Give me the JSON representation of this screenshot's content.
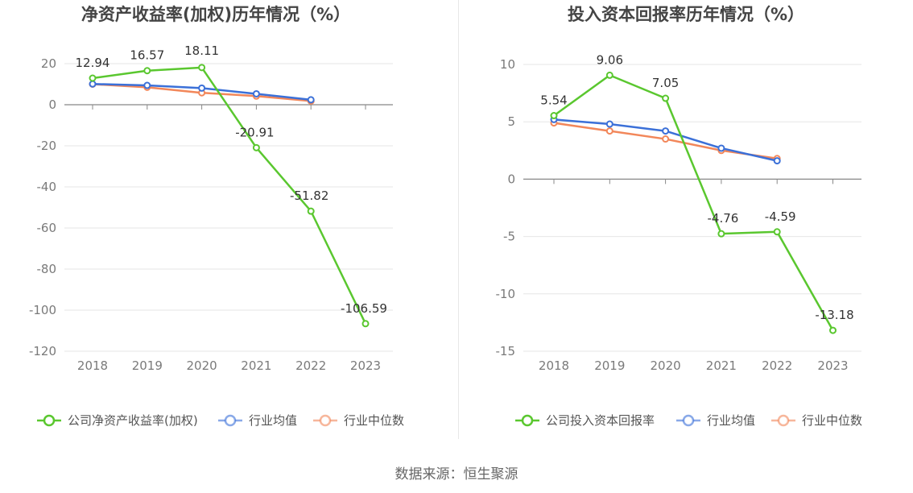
{
  "colors": {
    "company": "#5ac72f",
    "industry_avg": "#3b70d8",
    "industry_median": "#f2875a",
    "grid": "#e6e6e6",
    "axis": "#888888"
  },
  "source_text": "数据来源：恒生聚源",
  "chart_data": [
    {
      "type": "line",
      "title": "净资产收益率(加权)历年情况（%）",
      "categories": [
        "2018",
        "2019",
        "2020",
        "2021",
        "2022",
        "2023"
      ],
      "ylim": [
        -120,
        20
      ],
      "yticks": [
        20,
        0,
        -20,
        -40,
        -60,
        -80,
        -100,
        -120
      ],
      "grid": true,
      "legend_position": "bottom",
      "series": [
        {
          "name": "公司净资产收益率(加权)",
          "values": [
            12.94,
            16.57,
            18.11,
            -20.91,
            -51.82,
            -106.59
          ],
          "labels": [
            "12.94",
            "16.57",
            "18.11",
            "-20.91",
            "-51.82",
            "-106.59"
          ]
        },
        {
          "name": "行业均值",
          "values": [
            10.1,
            9.4,
            8.1,
            5.3,
            2.4,
            null
          ]
        },
        {
          "name": "行业中位数",
          "values": [
            10.0,
            8.5,
            5.8,
            4.2,
            1.8,
            null
          ]
        }
      ]
    },
    {
      "type": "line",
      "title": "投入资本回报率历年情况（%）",
      "categories": [
        "2018",
        "2019",
        "2020",
        "2021",
        "2022",
        "2023"
      ],
      "ylim": [
        -15,
        10
      ],
      "yticks": [
        10,
        5,
        0,
        -5,
        -10,
        -15
      ],
      "grid": true,
      "legend_position": "bottom",
      "series": [
        {
          "name": "公司投入资本回报率",
          "values": [
            5.54,
            9.06,
            7.05,
            -4.76,
            -4.59,
            -13.18
          ],
          "labels": [
            "5.54",
            "9.06",
            "7.05",
            "-4.76",
            "-4.59",
            "-13.18"
          ]
        },
        {
          "name": "行业均值",
          "values": [
            5.2,
            4.8,
            4.2,
            2.7,
            1.6,
            null
          ]
        },
        {
          "name": "行业中位数",
          "values": [
            4.9,
            4.2,
            3.5,
            2.5,
            1.8,
            null
          ]
        }
      ]
    }
  ]
}
